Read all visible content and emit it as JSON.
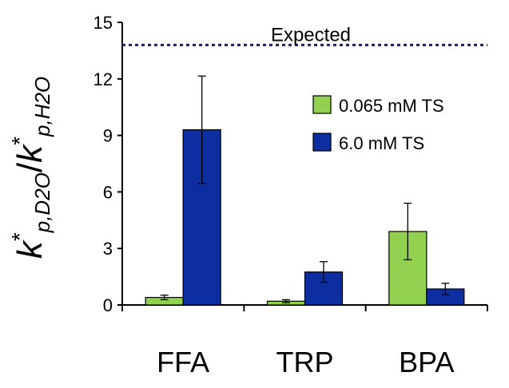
{
  "chart_data": {
    "type": "bar",
    "categories": [
      "FFA",
      "TRP",
      "BPA"
    ],
    "series": [
      {
        "name": "0.065 mM TS",
        "color": "#92d050",
        "values": [
          0.4,
          0.2,
          3.9
        ],
        "errors": [
          0.12,
          0.08,
          1.5
        ]
      },
      {
        "name": "6.0 mM TS",
        "color": "#0d2ea0",
        "values": [
          9.3,
          1.75,
          0.85
        ],
        "errors": [
          2.85,
          0.55,
          0.3
        ]
      }
    ],
    "ylabel": {
      "base1": "k",
      "sup1": "*",
      "sub1": "p,D2O",
      "slash": "/",
      "base2": "k",
      "sup2": "*",
      "sub2": "p,H2O"
    },
    "ylim": [
      0,
      15
    ],
    "yticks": [
      "0",
      "3",
      "6",
      "9",
      "12",
      "15"
    ],
    "reference_line": {
      "label": "Expected",
      "value": 13.8,
      "color": "#1a1a6e",
      "style": "dotted"
    },
    "legend": {
      "position": "top-right"
    },
    "grid": false
  }
}
